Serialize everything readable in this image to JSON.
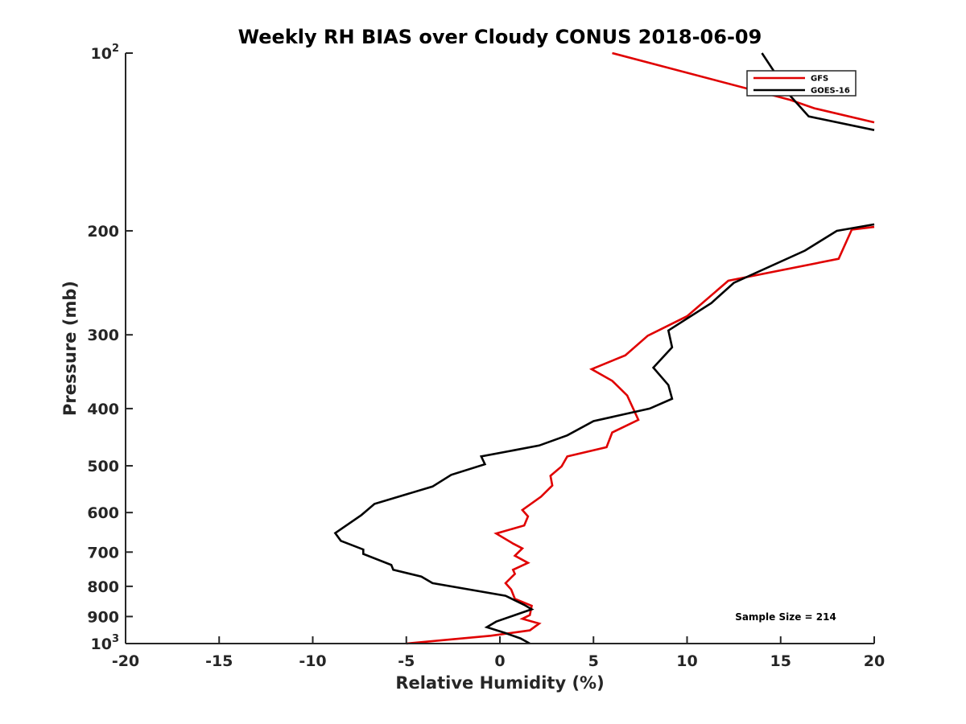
{
  "chart_data": {
    "type": "line",
    "title": "Weekly RH BIAS over Cloudy CONUS 2018-06-09",
    "xlabel": "Relative Humidity (%)",
    "ylabel": "Pressure (mb)",
    "xlim": [
      -20,
      20
    ],
    "ylim": [
      100,
      1000
    ],
    "y_scale": "log",
    "y_reversed": true,
    "grid": false,
    "legend_position": "top-right",
    "x_ticks": [
      "-20",
      "-15",
      "-10",
      "-5",
      "0",
      "5",
      "10",
      "15",
      "20"
    ],
    "y_ticks": [
      {
        "base": "10",
        "exp": "2"
      },
      {
        "base": "200",
        "exp": ""
      },
      {
        "base": "300",
        "exp": ""
      },
      {
        "base": "400",
        "exp": ""
      },
      {
        "base": "500",
        "exp": ""
      },
      {
        "base": "600",
        "exp": ""
      },
      {
        "base": "700",
        "exp": ""
      },
      {
        "base": "800",
        "exp": ""
      },
      {
        "base": "900",
        "exp": ""
      },
      {
        "base": "10",
        "exp": "3"
      }
    ],
    "annotation": "Sample Size = 214",
    "series": [
      {
        "name": "GFS",
        "color": "#e00000",
        "points": [
          [
            6.0,
            100
          ],
          [
            15.5,
            120
          ],
          [
            16.8,
            124
          ],
          [
            20.0,
            131
          ],
          null,
          [
            20.0,
            197
          ],
          [
            18.8,
            199
          ],
          [
            18.1,
            223
          ],
          [
            12.2,
            243
          ],
          [
            10.0,
            279
          ],
          [
            7.9,
            301
          ],
          [
            6.7,
            325
          ],
          [
            4.9,
            343
          ],
          [
            6.0,
            359
          ],
          [
            6.8,
            380
          ],
          [
            7.4,
            418
          ],
          [
            6.0,
            439
          ],
          [
            5.7,
            465
          ],
          [
            3.6,
            482
          ],
          [
            3.3,
            501
          ],
          [
            2.7,
            520
          ],
          [
            2.8,
            540
          ],
          [
            2.2,
            564
          ],
          [
            1.2,
            594
          ],
          [
            1.5,
            609
          ],
          [
            1.3,
            631
          ],
          [
            -0.2,
            651
          ],
          [
            0.7,
            677
          ],
          [
            1.2,
            690
          ],
          [
            0.8,
            710
          ],
          [
            1.5,
            730
          ],
          [
            0.7,
            750
          ],
          [
            0.8,
            762
          ],
          [
            0.3,
            790
          ],
          [
            0.6,
            810
          ],
          [
            0.8,
            840
          ],
          [
            1.7,
            863
          ],
          [
            1.6,
            895
          ],
          [
            1.2,
            908
          ],
          [
            2.1,
            925
          ],
          [
            1.6,
            950
          ],
          [
            -0.5,
            970
          ],
          [
            -5.0,
            1000
          ]
        ]
      },
      {
        "name": "GOES-16",
        "color": "#000000",
        "points": [
          [
            14.0,
            100
          ],
          [
            15.5,
            118
          ],
          [
            16.5,
            128
          ],
          [
            20.0,
            135
          ],
          null,
          [
            20.0,
            195
          ],
          [
            18.0,
            200
          ],
          [
            16.3,
            216
          ],
          [
            12.5,
            245
          ],
          [
            11.3,
            265
          ],
          [
            9.0,
            295
          ],
          [
            9.2,
            315
          ],
          [
            8.2,
            341
          ],
          [
            9.0,
            365
          ],
          [
            9.2,
            385
          ],
          [
            8.0,
            400
          ],
          [
            5.0,
            420
          ],
          [
            3.6,
            444
          ],
          [
            2.1,
            462
          ],
          [
            -1.0,
            482
          ],
          [
            -0.8,
            497
          ],
          [
            -2.6,
            518
          ],
          [
            -3.6,
            542
          ],
          [
            -6.7,
            580
          ],
          [
            -7.4,
            606
          ],
          [
            -8.8,
            650
          ],
          [
            -8.5,
            670
          ],
          [
            -7.3,
            693
          ],
          [
            -7.3,
            705
          ],
          [
            -5.8,
            736
          ],
          [
            -5.7,
            750
          ],
          [
            -4.2,
            770
          ],
          [
            -3.6,
            790
          ],
          [
            0.3,
            830
          ],
          [
            1.3,
            860
          ],
          [
            1.7,
            875
          ],
          [
            0.8,
            895
          ],
          [
            -0.2,
            918
          ],
          [
            -0.7,
            938
          ],
          [
            0.3,
            960
          ],
          [
            1.1,
            980
          ],
          [
            1.6,
            1000
          ]
        ]
      }
    ]
  }
}
